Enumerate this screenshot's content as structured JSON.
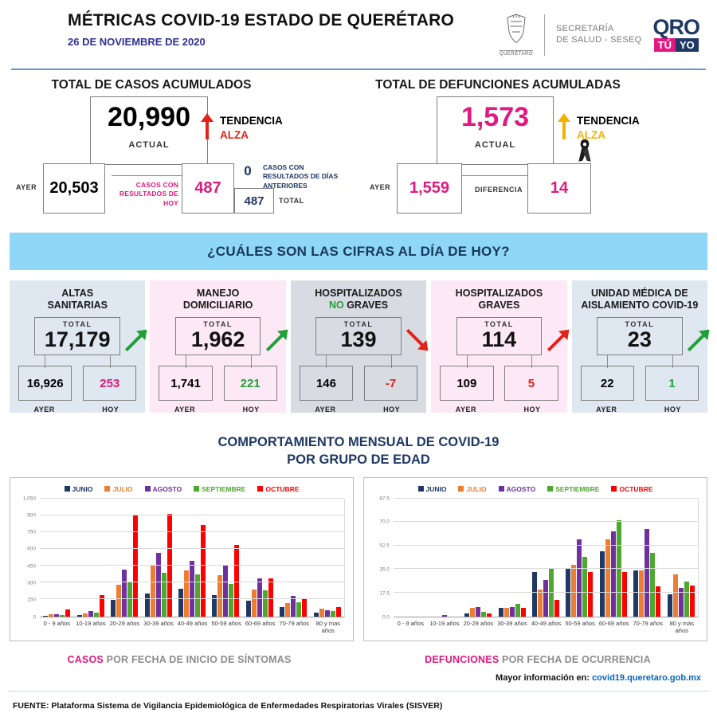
{
  "colors": {
    "magenta": "#E0187F",
    "navy": "#1F3864",
    "date_blue": "#2E3192",
    "red": "#E32219",
    "gold": "#F2B203",
    "green": "#21A038",
    "link": "#0563C1",
    "banner_bg": "#8FD7F6",
    "banner_text": "#17375E",
    "rule_blue": "#5B9BD5",
    "black": "#1A1A1A"
  },
  "header": {
    "title": "MÉTRICAS COVID-19 ESTADO DE QUERÉTARO",
    "date": "26 DE NOVIEMBRE DE 2020",
    "shield_caption": "QUERÉTARO",
    "secretaria_line1": "SECRETARÍA",
    "secretaria_line2": "DE SALUD - SESEQ",
    "qro": "QRO",
    "tu": "TÚ",
    "yo": "YO"
  },
  "cases": {
    "title": "TOTAL DE CASOS ACUMULADOS",
    "actual": "20,990",
    "actual_label": "ACTUAL",
    "tendencia_label": "TENDENCIA",
    "tendencia_value": "ALZA",
    "trend_color": "#E32219",
    "ayer_label": "AYER",
    "ayer": "20,503",
    "hoy_label": "CASOS CON RESULTADOS DE HOY",
    "hoy": "487",
    "anteriores": "0",
    "anteriores_label": "CASOS CON RESULTADOS DE DÍAS ANTERIORES",
    "total": "487",
    "total_label": "TOTAL"
  },
  "deaths": {
    "title": "TOTAL DE DEFUNCIONES ACUMULADAS",
    "actual": "1,573",
    "actual_label": "ACTUAL",
    "tendencia_label": "TENDENCIA",
    "tendencia_value": "ALZA",
    "trend_color": "#F2B203",
    "ayer_label": "AYER",
    "ayer": "1,559",
    "diferencia_label": "DIFERENCIA",
    "diferencia": "14"
  },
  "banner": {
    "text": "¿CUÁLES SON LAS CIFRAS AL DÍA DE HOY?"
  },
  "cards": [
    {
      "title1": "ALTAS",
      "accent": "",
      "title2": "SANITARIAS",
      "total_label": "TOTAL",
      "total": "17,179",
      "ayer": "16,926",
      "hoy": "253",
      "ayer_label": "AYER",
      "hoy_label": "HOY",
      "bg": "#DFE7F0",
      "hoy_color": "#E0187F",
      "trend": "up",
      "trend_color": "#21A038"
    },
    {
      "title1": "MANEJO",
      "accent": "",
      "title2": "DOMICILIARIO",
      "total_label": "TOTAL",
      "total": "1,962",
      "ayer": "1,741",
      "hoy": "221",
      "ayer_label": "AYER",
      "hoy_label": "HOY",
      "bg": "#FCE9F5",
      "hoy_color": "#21A038",
      "trend": "up",
      "trend_color": "#21A038"
    },
    {
      "title1": "HOSPITALIZADOS",
      "accent": "NO",
      "title2": "GRAVES",
      "total_label": "TOTAL",
      "total": "139",
      "ayer": "146",
      "hoy": "-7",
      "ayer_label": "AYER",
      "hoy_label": "HOY",
      "bg": "#D8DBE2",
      "hoy_color": "#E32219",
      "trend": "down",
      "trend_color": "#E32219",
      "accent_color": "#21A038"
    },
    {
      "title1": "HOSPITALIZADOS",
      "accent": "",
      "title2": "GRAVES",
      "total_label": "TOTAL",
      "total": "114",
      "ayer": "109",
      "hoy": "5",
      "ayer_label": "AYER",
      "hoy_label": "HOY",
      "bg": "#FCE9F5",
      "hoy_color": "#E32219",
      "trend": "up",
      "trend_color": "#E32219"
    },
    {
      "title1": "UNIDAD MÉDICA DE",
      "accent": "",
      "title2": "AISLAMIENTO COVID-19",
      "total_label": "TOTAL",
      "total": "23",
      "ayer": "22",
      "hoy": "1",
      "ayer_label": "AYER",
      "hoy_label": "HOY",
      "bg": "#DFE7F0",
      "hoy_color": "#21A038",
      "trend": "up",
      "trend_color": "#21A038"
    }
  ],
  "charts_section": {
    "title_line1": "COMPORTAMIENTO MENSUAL DE COVID-19",
    "title_line2": "POR GRUPO DE EDAD"
  },
  "chart_data": [
    {
      "type": "bar",
      "title": "CASOS POR FECHA DE INICIO DE SÍNTOMAS",
      "categories": [
        "0 - 9 años",
        "10-19 años",
        "20-29 años",
        "30-39 años",
        "40-49 años",
        "50-59 años",
        "60-69 años",
        "70-79 años",
        "80 y mas años"
      ],
      "series": [
        {
          "name": "JUNIO",
          "color": "#1F3864",
          "values": [
            5,
            10,
            145,
            200,
            245,
            185,
            140,
            80,
            30
          ]
        },
        {
          "name": "JULIO",
          "color": "#ED7D31",
          "values": [
            20,
            25,
            280,
            460,
            405,
            365,
            235,
            115,
            65
          ]
        },
        {
          "name": "AGOSTO",
          "color": "#7030A0",
          "values": [
            15,
            45,
            415,
            565,
            495,
            450,
            335,
            180,
            55
          ]
        },
        {
          "name": "SEPTIEMBRE",
          "color": "#4EA72E",
          "values": [
            12,
            35,
            300,
            385,
            370,
            290,
            230,
            125,
            48
          ]
        },
        {
          "name": "OCTUBRE",
          "color": "#FF0000",
          "values": [
            60,
            190,
            895,
            910,
            810,
            635,
            335,
            150,
            80
          ]
        }
      ],
      "ylim": [
        0,
        1050
      ],
      "yticks": [
        {
          "label": "0",
          "value": 0
        },
        {
          "label": "150",
          "value": 150
        },
        {
          "label": "300",
          "value": 300
        },
        {
          "label": "450",
          "value": 450
        },
        {
          "label": "600",
          "value": 600
        },
        {
          "label": "750",
          "value": 750
        },
        {
          "label": "900",
          "value": 900
        },
        {
          "label": "1,050",
          "value": 1050
        }
      ],
      "grid": true,
      "legend_position": "top"
    },
    {
      "type": "bar",
      "title": "DEFUNCIONES POR FECHA DE OCURRENCIA",
      "categories": [
        "0 - 9 años",
        "10-19 años",
        "20-29 años",
        "30-39 años",
        "40-49 años",
        "50-59 años",
        "60-69 años",
        "70-79 años",
        "80 y más años"
      ],
      "series": [
        {
          "name": "JUNIO",
          "color": "#1F3864",
          "values": [
            0,
            0,
            2,
            6,
            33,
            35,
            48,
            34,
            16
          ]
        },
        {
          "name": "JULIO",
          "color": "#ED7D31",
          "values": [
            0,
            0,
            6,
            6,
            20,
            38,
            57,
            34,
            31
          ]
        },
        {
          "name": "AGOSTO",
          "color": "#7030A0",
          "values": [
            0,
            1,
            7,
            7,
            27,
            57,
            63,
            65,
            21
          ]
        },
        {
          "name": "SEPTIEMBRE",
          "color": "#4EA72E",
          "values": [
            0,
            0,
            3,
            9,
            36,
            44,
            71,
            47,
            26
          ]
        },
        {
          "name": "OCTUBRE",
          "color": "#FF0000",
          "values": [
            0,
            0,
            2,
            6,
            12,
            33,
            33,
            22,
            23
          ]
        }
      ],
      "ylim": [
        0,
        87.5
      ],
      "yticks": [
        {
          "label": "0.0",
          "value": 0
        },
        {
          "label": "17.5",
          "value": 17.5
        },
        {
          "label": "35.0",
          "value": 35
        },
        {
          "label": "52.5",
          "value": 52.5
        },
        {
          "label": "70.0",
          "value": 70
        },
        {
          "label": "87.5",
          "value": 87.5
        }
      ],
      "grid": true,
      "legend_position": "top"
    }
  ],
  "captions": {
    "left_accent": "CASOS",
    "left_rest": " POR FECHA DE INICIO DE SÍNTOMAS",
    "right_accent": "DEFUNCIONES",
    "right_rest": " POR FECHA DE OCURRENCIA"
  },
  "footer": {
    "info_label": "Mayor información en: ",
    "info_link": "covid19.queretaro.gob.mx",
    "source": "FUENTE: Plataforma Sistema  de Vigilancia Epidemiológica de Enfermedades Respiratorias Virales (SISVER)"
  }
}
